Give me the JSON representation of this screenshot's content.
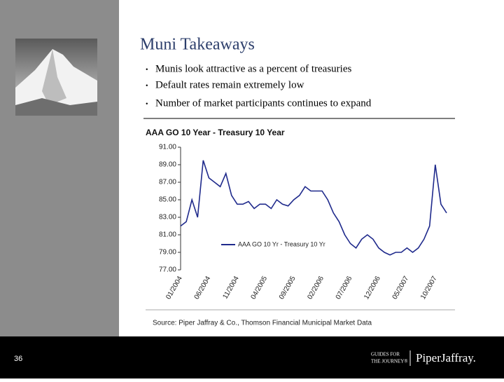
{
  "slide": {
    "title": "Muni Takeaways",
    "bullets": [
      "Munis look attractive as a percent of treasuries",
      "Default rates remain extremely low",
      "Number of market participants continues to expand"
    ],
    "page_number": "36",
    "logo_tagline": [
      "GUIDES FOR",
      "THE JOURNEY®"
    ],
    "logo_name": "PiperJaffray."
  },
  "chart_data": {
    "type": "line",
    "title": "AAA GO 10 Year - Treasury 10 Year",
    "annotation": "Source: Piper Jaffray & Co., Thomson Financial Municipal Market Data",
    "categories": [
      "01/2004",
      null,
      null,
      null,
      null,
      "06/2004",
      null,
      null,
      null,
      null,
      "11/2004",
      null,
      null,
      null,
      null,
      "04/2005",
      null,
      null,
      null,
      null,
      "09/2005",
      null,
      null,
      null,
      null,
      "02/2006",
      null,
      null,
      null,
      null,
      "07/2006",
      null,
      null,
      null,
      null,
      "12/2006",
      null,
      null,
      null,
      null,
      "05/2007",
      null,
      null,
      null,
      null,
      "10/2007",
      null,
      null
    ],
    "series": [
      {
        "name": "AAA GO 10 Yr - Treasury 10 Yr",
        "color": "#1f2a8c",
        "values": [
          82,
          82.5,
          85,
          83,
          89.5,
          87.5,
          87,
          86.5,
          88,
          85.5,
          84.5,
          84.5,
          84.8,
          84,
          84.5,
          84.5,
          84,
          85,
          84.5,
          84.3,
          85,
          85.5,
          86.5,
          86,
          86,
          86,
          85,
          83.5,
          82.5,
          81,
          80,
          79.5,
          80.5,
          81,
          80.5,
          79.5,
          79,
          78.7,
          79,
          79,
          79.5,
          79,
          79.5,
          80.5,
          82,
          89,
          84.5,
          83.5
        ]
      }
    ],
    "ylim": [
      77,
      91
    ],
    "yticks": [
      {
        "value": 77,
        "label": "77.00"
      },
      {
        "value": 79,
        "label": "79.00"
      },
      {
        "value": 81,
        "label": "81.00"
      },
      {
        "value": 83,
        "label": "83.00"
      },
      {
        "value": 85,
        "label": "85.00"
      },
      {
        "value": 87,
        "label": "87.00"
      },
      {
        "value": 89,
        "label": "89.00"
      },
      {
        "value": 91,
        "label": "91.00"
      }
    ],
    "legend": "inside-lower-left"
  }
}
